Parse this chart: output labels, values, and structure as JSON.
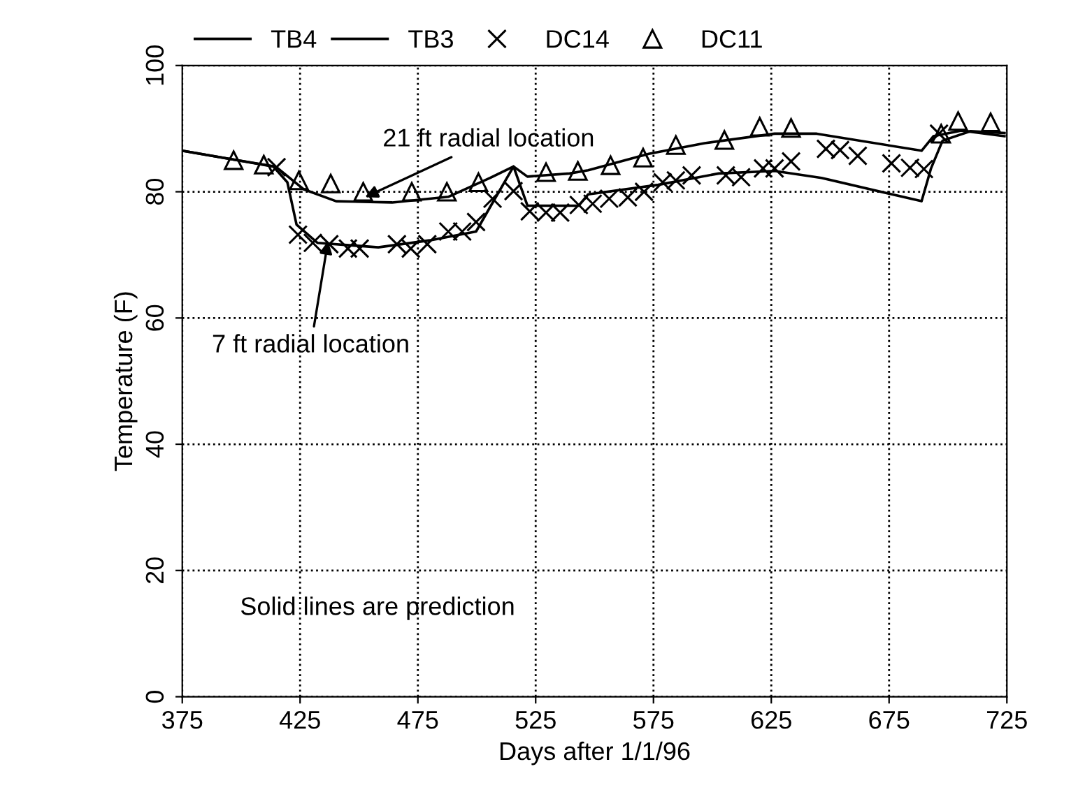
{
  "chart_data": {
    "type": "line",
    "xlabel": "Days after 1/1/96",
    "ylabel": "Temperature (F)",
    "xlim": [
      375,
      725
    ],
    "xticks": [
      375,
      425,
      475,
      525,
      575,
      625,
      675,
      725
    ],
    "ylim": [
      0,
      100
    ],
    "yticks": [
      0,
      20,
      40,
      60,
      80,
      100
    ],
    "grid": true,
    "legend": "top left",
    "series": [
      {
        "name": "TB4",
        "color": "#000000",
        "marker": "none",
        "line_style": "solid",
        "x": [
          375,
          396.8,
          414.6,
          426.5,
          440.3,
          464.1,
          487.9,
          505.7,
          515.6,
          521.5,
          539.4,
          547.3,
          573,
          596.7,
          626.4,
          644.3,
          688.8,
          693.8,
          705.7,
          724
        ],
        "values": [
          86.5,
          85.1,
          84.0,
          80.4,
          78.5,
          78.3,
          79.2,
          82.2,
          84.0,
          82.4,
          82.9,
          83.4,
          86.0,
          87.7,
          89.2,
          89.2,
          86.5,
          88.8,
          89.7,
          88.8
        ]
      },
      {
        "name": "TB3",
        "color": "#000000",
        "marker": "none",
        "line_style": "solid",
        "x": [
          375,
          396.8,
          413.6,
          419.6,
          423.5,
          432.4,
          458.2,
          480,
          499.7,
          507.7,
          515.6,
          521.5,
          543.3,
          547.3,
          577,
          602.7,
          626.4,
          646.3,
          688.8,
          692.8,
          697.7,
          709.6,
          724
        ],
        "values": [
          86.5,
          85.1,
          84.0,
          81.5,
          74.8,
          71.9,
          71.2,
          72.3,
          73.7,
          78.9,
          84.0,
          77.8,
          77.8,
          79.6,
          81.1,
          82.9,
          83.3,
          82.2,
          78.5,
          83.7,
          88.1,
          89.6,
          89.3
        ]
      },
      {
        "name": "DC14",
        "type": "scatter",
        "color": "#000000",
        "marker": "cross",
        "x": [
          415,
          424.1,
          430.4,
          437.4,
          445.3,
          450.3,
          466.1,
          472,
          479,
          487.9,
          493.8,
          499.7,
          506.7,
          515.6,
          522.5,
          529.4,
          535.4,
          543.3,
          549.2,
          556.2,
          564.1,
          571,
          578.9,
          584.5,
          591.2,
          605.7,
          612.2,
          621.5,
          626.4,
          633.4,
          648.2,
          654.2,
          661.7,
          676,
          683.9,
          689.8,
          696.2
        ],
        "values": [
          83.9,
          73.2,
          71.9,
          71.7,
          71.0,
          71.0,
          71.7,
          71.0,
          71.7,
          73.7,
          73.7,
          75.2,
          78.9,
          80.1,
          76.9,
          76.7,
          76.7,
          77.9,
          78.1,
          78.9,
          79.1,
          80.0,
          81.5,
          81.8,
          82.6,
          82.6,
          82.3,
          83.7,
          83.7,
          84.8,
          86.8,
          86.6,
          85.7,
          84.5,
          83.8,
          83.6,
          89.2
        ]
      },
      {
        "name": "DC11",
        "type": "scatter",
        "color": "#000000",
        "marker": "triangle",
        "x": [
          396.8,
          409.6,
          424.5,
          438,
          451.8,
          472.4,
          487.3,
          500.7,
          529.4,
          542.9,
          556.8,
          570.6,
          584.5,
          605.1,
          620.1,
          633.4,
          697.1,
          704.3,
          718.1
        ],
        "values": [
          85.0,
          84.3,
          81.8,
          81.3,
          80.0,
          80.0,
          80.0,
          81.5,
          83.1,
          83.3,
          84.2,
          85.4,
          87.4,
          88.2,
          90.3,
          90.1,
          89.2,
          91.2,
          91.0
        ]
      }
    ],
    "annotations": [
      {
        "text": "21 ft radial location",
        "x": 451.8,
        "y": 79
      },
      {
        "text": "7 ft radial location",
        "x": 437,
        "y": 72.5
      },
      "Solid lines are prediction"
    ]
  }
}
